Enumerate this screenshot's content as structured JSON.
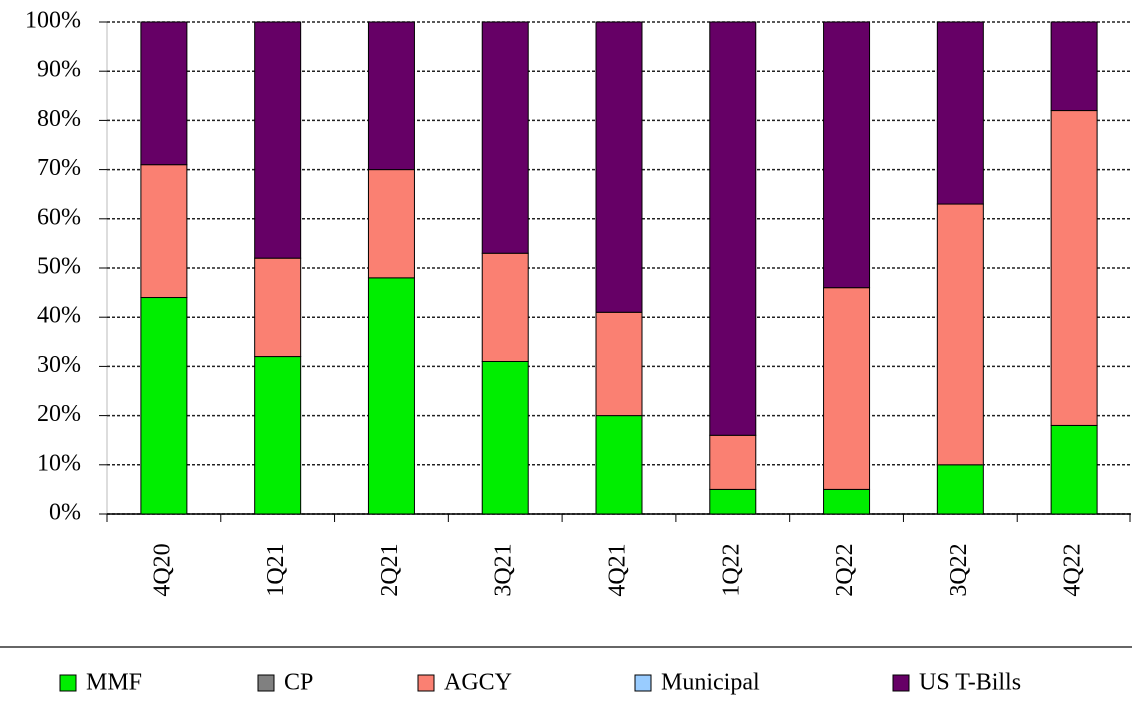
{
  "chart_data": {
    "type": "stacked_bar",
    "categories": [
      "4Q20",
      "1Q21",
      "2Q21",
      "3Q21",
      "4Q21",
      "1Q22",
      "2Q22",
      "3Q22",
      "4Q22"
    ],
    "series": [
      {
        "name": "MMF",
        "color": "#00ee00",
        "values": [
          44,
          32,
          48,
          31,
          20,
          5,
          5,
          10,
          18
        ]
      },
      {
        "name": "CP",
        "color": "#808080",
        "values": [
          0,
          0,
          0,
          0,
          0,
          0,
          0,
          0,
          0
        ]
      },
      {
        "name": "AGCY",
        "color": "#fa8072",
        "values": [
          27,
          20,
          22,
          22,
          21,
          11,
          41,
          53,
          64
        ]
      },
      {
        "name": "Municipal",
        "color": "#99ccff",
        "values": [
          0,
          0,
          0,
          0,
          0,
          0,
          0,
          0,
          0
        ]
      },
      {
        "name": "US T-Bills",
        "color": "#660066",
        "values": [
          29,
          48,
          30,
          47,
          59,
          84,
          54,
          37,
          18
        ]
      }
    ],
    "ylim": [
      0,
      100
    ],
    "yticks": [
      {
        "value": 0,
        "label": "0%"
      },
      {
        "value": 10,
        "label": "10%"
      },
      {
        "value": 20,
        "label": "20%"
      },
      {
        "value": 30,
        "label": "30%"
      },
      {
        "value": 40,
        "label": "40%"
      },
      {
        "value": 50,
        "label": "50%"
      },
      {
        "value": 60,
        "label": "60%"
      },
      {
        "value": 70,
        "label": "70%"
      },
      {
        "value": 80,
        "label": "80%"
      },
      {
        "value": 90,
        "label": "90%"
      },
      {
        "value": 100,
        "label": "100%"
      }
    ],
    "grid": true,
    "legend": "bottom"
  }
}
